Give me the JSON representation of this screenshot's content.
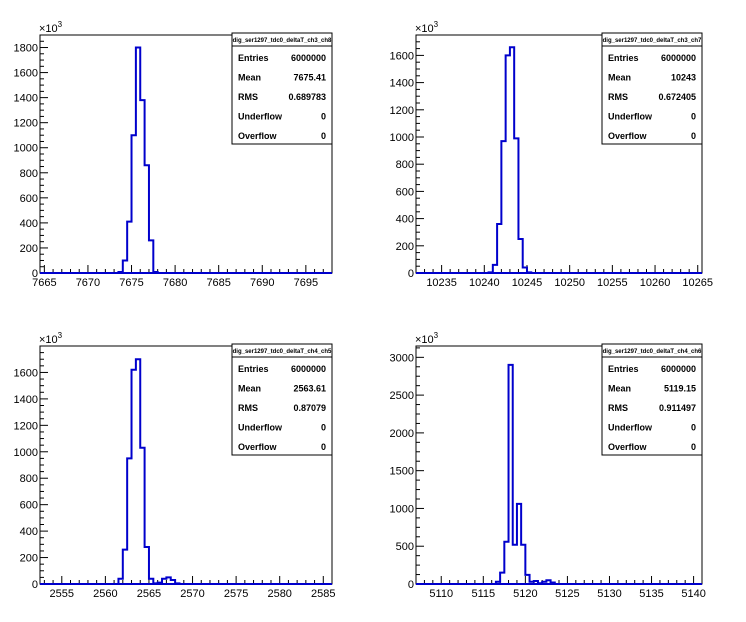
{
  "chart_data": [
    {
      "type": "histogram",
      "exponent_label": "×10",
      "exponent_power": "3",
      "stats": {
        "title": "dig_ser1297_tdc0_deltaT_ch3_ch8",
        "rows": [
          {
            "label": "Entries",
            "value": "6000000"
          },
          {
            "label": "Mean",
            "value": "7675.41"
          },
          {
            "label": "RMS",
            "value": "0.689783"
          },
          {
            "label": "Underflow",
            "value": "0"
          },
          {
            "label": "Overflow",
            "value": "0"
          }
        ]
      },
      "xlim": [
        7664.5,
        7698
      ],
      "ylim": [
        0,
        1900
      ],
      "x_ticks": [
        7665,
        7670,
        7675,
        7680,
        7685,
        7690,
        7695
      ],
      "y_ticks": [
        0,
        200,
        400,
        600,
        800,
        1000,
        1200,
        1400,
        1600,
        1800
      ],
      "bin_width": 0.5,
      "bins": [
        [
          7673.5,
          8
        ],
        [
          7674.0,
          100
        ],
        [
          7674.5,
          410
        ],
        [
          7675.0,
          1100
        ],
        [
          7675.5,
          1800
        ],
        [
          7676.0,
          1380
        ],
        [
          7676.5,
          860
        ],
        [
          7677.0,
          260
        ],
        [
          7677.5,
          8
        ]
      ]
    },
    {
      "type": "histogram",
      "exponent_label": "×10",
      "exponent_power": "3",
      "stats": {
        "title": "dig_ser1297_tdc0_deltaT_ch3_ch7",
        "rows": [
          {
            "label": "Entries",
            "value": "6000000"
          },
          {
            "label": "Mean",
            "value": "10243"
          },
          {
            "label": "RMS",
            "value": "0.672405"
          },
          {
            "label": "Underflow",
            "value": "0"
          },
          {
            "label": "Overflow",
            "value": "0"
          }
        ]
      },
      "xlim": [
        10232,
        10265.5
      ],
      "ylim": [
        0,
        1750
      ],
      "x_ticks": [
        10235,
        10240,
        10245,
        10250,
        10255,
        10260,
        10265
      ],
      "y_ticks": [
        0,
        200,
        400,
        600,
        800,
        1000,
        1200,
        1400,
        1600
      ],
      "bin_width": 0.5,
      "bins": [
        [
          10240.5,
          5
        ],
        [
          10241.0,
          60
        ],
        [
          10241.5,
          360
        ],
        [
          10242.0,
          970
        ],
        [
          10242.5,
          1600
        ],
        [
          10243.0,
          1660
        ],
        [
          10243.5,
          990
        ],
        [
          10244.0,
          250
        ],
        [
          10244.5,
          40
        ],
        [
          10245.0,
          5
        ]
      ]
    },
    {
      "type": "histogram",
      "exponent_label": "×10",
      "exponent_power": "3",
      "stats": {
        "title": "dig_ser1297_tdc0_deltaT_ch4_ch5",
        "rows": [
          {
            "label": "Entries",
            "value": "6000000"
          },
          {
            "label": "Mean",
            "value": "2563.61"
          },
          {
            "label": "RMS",
            "value": "0.87079"
          },
          {
            "label": "Underflow",
            "value": "0"
          },
          {
            "label": "Overflow",
            "value": "0"
          }
        ]
      },
      "xlim": [
        2552.5,
        2586
      ],
      "ylim": [
        0,
        1800
      ],
      "x_ticks": [
        2555,
        2560,
        2565,
        2570,
        2575,
        2580,
        2585
      ],
      "y_ticks": [
        0,
        200,
        400,
        600,
        800,
        1000,
        1200,
        1400,
        1600
      ],
      "bin_width": 0.5,
      "bins": [
        [
          2561.5,
          40
        ],
        [
          2562.0,
          260
        ],
        [
          2562.5,
          950
        ],
        [
          2563.0,
          1620
        ],
        [
          2563.5,
          1700
        ],
        [
          2564.0,
          1030
        ],
        [
          2564.5,
          280
        ],
        [
          2565.0,
          40
        ],
        [
          2565.5,
          5
        ],
        [
          2566.0,
          10
        ],
        [
          2566.5,
          40
        ],
        [
          2567.0,
          50
        ],
        [
          2567.5,
          30
        ],
        [
          2568.0,
          5
        ]
      ]
    },
    {
      "type": "histogram",
      "exponent_label": "×10",
      "exponent_power": "3",
      "stats": {
        "title": "dig_ser1297_tdc0_deltaT_ch4_ch6",
        "rows": [
          {
            "label": "Entries",
            "value": "6000000"
          },
          {
            "label": "Mean",
            "value": "5119.15"
          },
          {
            "label": "RMS",
            "value": "0.911497"
          },
          {
            "label": "Underflow",
            "value": "0"
          },
          {
            "label": "Overflow",
            "value": "0"
          }
        ]
      },
      "xlim": [
        5107,
        5141
      ],
      "ylim": [
        0,
        3150
      ],
      "x_ticks": [
        5110,
        5115,
        5120,
        5125,
        5130,
        5135,
        5140
      ],
      "y_ticks": [
        0,
        500,
        1000,
        1500,
        2000,
        2500,
        3000
      ],
      "bin_width": 0.5,
      "bins": [
        [
          5116.5,
          30
        ],
        [
          5117.0,
          150
        ],
        [
          5117.5,
          560
        ],
        [
          5118.0,
          2900
        ],
        [
          5118.5,
          520
        ],
        [
          5119.0,
          1060
        ],
        [
          5119.5,
          520
        ],
        [
          5120.0,
          120
        ],
        [
          5120.5,
          30
        ],
        [
          5121.0,
          40
        ],
        [
          5121.5,
          10
        ],
        [
          5122.0,
          30
        ],
        [
          5122.5,
          50
        ],
        [
          5123.0,
          20
        ]
      ]
    }
  ]
}
